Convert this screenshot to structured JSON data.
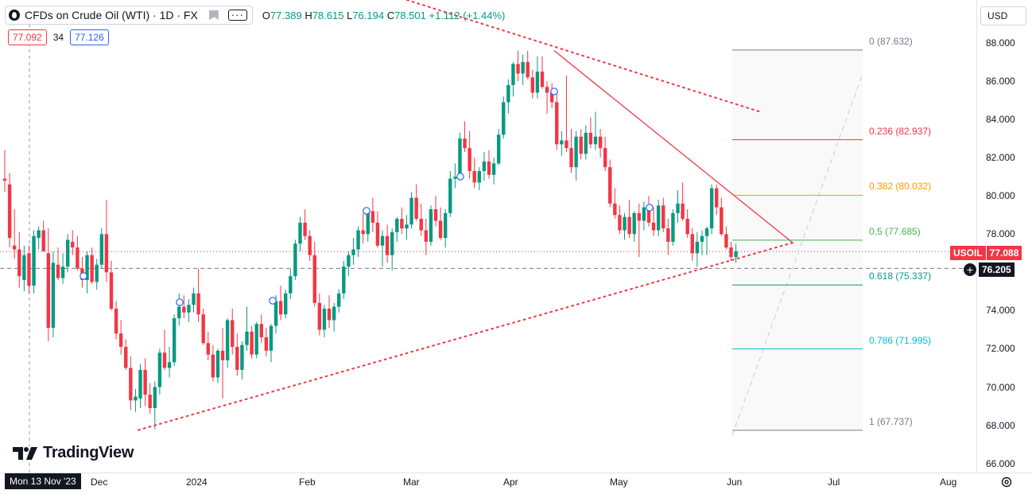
{
  "header": {
    "symbol_title": "CFDs on Crude Oil (WTI) · 1D · FX",
    "ohlc": {
      "o_label": "O",
      "o_value": "77.389",
      "h_label": "H",
      "h_value": "78.615",
      "l_label": "L",
      "l_value": "76.194",
      "c_label": "C",
      "c_value": "78.501",
      "change": "+1.112 (+1.44%)"
    },
    "bid": "77.092",
    "spread": "34",
    "ask": "77.126"
  },
  "currency_button": "USD",
  "price_axis": [
    "88.000",
    "86.000",
    "84.000",
    "82.000",
    "80.000",
    "78.000",
    "76.000",
    "74.000",
    "72.000",
    "70.000",
    "68.000",
    "66.000"
  ],
  "time_axis": [
    "Dec",
    "2024",
    "Feb",
    "Mar",
    "Apr",
    "May",
    "Jun",
    "Jul",
    "Aug"
  ],
  "crosshair_date": "Mon 13 Nov '23",
  "last_price": {
    "symbol": "USOIL",
    "value": "77.088",
    "color": "#f23645"
  },
  "cursor_price": "76.205",
  "fib_levels": [
    {
      "label": "0 (87.632)",
      "level": 87.632,
      "color": "#787b86"
    },
    {
      "label": "0.236 (82.937)",
      "level": 82.937,
      "color": "#f23645"
    },
    {
      "label": "0.382 (80.032)",
      "level": 80.032,
      "color": "#ff9800"
    },
    {
      "label": "0.5 (77.685)",
      "level": 77.685,
      "color": "#4caf50"
    },
    {
      "label": "0.618 (75.337)",
      "level": 75.337,
      "color": "#089981"
    },
    {
      "label": "0.786 (71.995)",
      "level": 71.995,
      "color": "#00bcd4"
    },
    {
      "label": "1 (67.737)",
      "level": 67.737,
      "color": "#787b86"
    }
  ],
  "colors": {
    "up": "#089981",
    "down": "#f23645",
    "background": "#ffffff",
    "accent": "#2962ff"
  },
  "brand": "TradingView",
  "icons": [
    "oil-drop-icon",
    "flag-icon",
    "more-icon",
    "settings-icon",
    "plus-circle-icon"
  ],
  "chart_data": {
    "type": "candlestick",
    "price_range": [
      65.5,
      89.5
    ],
    "candles": [
      [
        80.9,
        82.4,
        80.2,
        80.8
      ],
      [
        80.6,
        81.2,
        77.3,
        77.8
      ],
      [
        77.4,
        79.3,
        76.7,
        77.2
      ],
      [
        77.2,
        78.1,
        75.2,
        75.8
      ],
      [
        75.6,
        77.4,
        75.0,
        76.9
      ],
      [
        77.0,
        77.4,
        74.9,
        75.3
      ],
      [
        75.3,
        78.2,
        74.9,
        77.9
      ],
      [
        77.8,
        78.4,
        77.2,
        78.2
      ],
      [
        78.2,
        78.7,
        77.1,
        77.1
      ],
      [
        77.0,
        78.3,
        72.4,
        73.1
      ],
      [
        73.1,
        77.1,
        72.6,
        76.5
      ],
      [
        76.4,
        77.3,
        75.6,
        75.7
      ],
      [
        75.7,
        77.0,
        75.4,
        76.3
      ],
      [
        76.3,
        78.0,
        76.0,
        77.7
      ],
      [
        77.6,
        78.2,
        76.9,
        77.3
      ],
      [
        77.3,
        77.9,
        76.1,
        76.2
      ],
      [
        76.2,
        76.8,
        75.2,
        75.6
      ],
      [
        75.6,
        77.1,
        74.9,
        76.9
      ],
      [
        76.9,
        77.3,
        75.4,
        75.5
      ],
      [
        75.5,
        76.7,
        75.1,
        76.4
      ],
      [
        76.4,
        78.3,
        76.2,
        78.0
      ],
      [
        78.0,
        79.8,
        75.5,
        76.0
      ],
      [
        76.0,
        76.6,
        74.0,
        74.1
      ],
      [
        74.1,
        74.5,
        72.5,
        72.8
      ],
      [
        72.8,
        73.5,
        71.7,
        72.1
      ],
      [
        72.1,
        72.5,
        70.9,
        71.0
      ],
      [
        71.0,
        71.6,
        68.8,
        69.3
      ],
      [
        69.3,
        69.9,
        68.7,
        69.5
      ],
      [
        69.4,
        71.2,
        68.9,
        70.9
      ],
      [
        70.9,
        71.5,
        69.0,
        69.6
      ],
      [
        69.6,
        70.2,
        68.6,
        68.9
      ],
      [
        68.9,
        70.3,
        67.8,
        70.0
      ],
      [
        70.0,
        72.0,
        69.6,
        71.8
      ],
      [
        71.8,
        73.0,
        70.9,
        71.0
      ],
      [
        71.0,
        72.1,
        70.5,
        71.3
      ],
      [
        71.3,
        73.8,
        71.1,
        73.6
      ],
      [
        73.6,
        74.9,
        73.2,
        74.2
      ],
      [
        74.2,
        74.8,
        73.6,
        73.9
      ],
      [
        73.9,
        74.6,
        73.4,
        74.3
      ],
      [
        74.3,
        75.2,
        73.9,
        74.9
      ],
      [
        74.9,
        76.2,
        73.4,
        73.8
      ],
      [
        73.8,
        74.1,
        72.2,
        72.3
      ],
      [
        72.3,
        72.9,
        71.4,
        71.7
      ],
      [
        71.7,
        72.2,
        70.3,
        70.5
      ],
      [
        70.5,
        72.0,
        70.2,
        71.9
      ],
      [
        71.9,
        73.1,
        69.4,
        71.4
      ],
      [
        71.4,
        73.6,
        71.0,
        73.5
      ],
      [
        73.5,
        74.1,
        71.7,
        72.1
      ],
      [
        72.1,
        72.8,
        70.6,
        70.9
      ],
      [
        70.9,
        72.4,
        70.4,
        72.2
      ],
      [
        72.2,
        74.2,
        71.9,
        72.9
      ],
      [
        72.9,
        73.2,
        71.5,
        71.7
      ],
      [
        71.7,
        73.4,
        71.5,
        73.3
      ],
      [
        73.3,
        73.8,
        72.3,
        72.6
      ],
      [
        72.6,
        73.1,
        71.6,
        71.9
      ],
      [
        71.9,
        73.3,
        71.3,
        73.2
      ],
      [
        73.2,
        74.8,
        72.8,
        74.5
      ],
      [
        74.5,
        75.3,
        73.5,
        73.8
      ],
      [
        73.8,
        75.1,
        73.6,
        74.9
      ],
      [
        74.9,
        76.2,
        74.6,
        75.8
      ],
      [
        75.8,
        77.7,
        75.6,
        77.5
      ],
      [
        77.5,
        78.9,
        77.1,
        78.6
      ],
      [
        78.6,
        79.3,
        77.7,
        77.9
      ],
      [
        77.9,
        78.2,
        76.6,
        76.9
      ],
      [
        76.9,
        77.6,
        74.2,
        74.4
      ],
      [
        74.4,
        74.9,
        72.7,
        73.0
      ],
      [
        73.0,
        74.3,
        72.6,
        74.1
      ],
      [
        74.1,
        74.8,
        73.1,
        73.5
      ],
      [
        73.5,
        74.4,
        72.9,
        74.2
      ],
      [
        74.2,
        75.1,
        73.9,
        74.9
      ],
      [
        74.9,
        76.6,
        74.6,
        76.3
      ],
      [
        76.3,
        77.1,
        75.8,
        76.9
      ],
      [
        76.9,
        77.8,
        76.4,
        77.2
      ],
      [
        77.2,
        78.4,
        76.8,
        78.2
      ],
      [
        78.2,
        79.1,
        77.5,
        78.0
      ],
      [
        78.0,
        79.4,
        77.6,
        79.2
      ],
      [
        79.2,
        79.9,
        78.1,
        78.6
      ],
      [
        78.6,
        79.2,
        77.3,
        77.4
      ],
      [
        77.4,
        78.2,
        76.3,
        77.9
      ],
      [
        77.9,
        78.5,
        76.5,
        76.9
      ],
      [
        76.9,
        78.3,
        76.1,
        78.1
      ],
      [
        78.1,
        78.9,
        77.6,
        78.8
      ],
      [
        78.8,
        79.4,
        78.0,
        78.3
      ],
      [
        78.3,
        79.0,
        77.7,
        78.5
      ],
      [
        78.5,
        80.2,
        78.3,
        79.9
      ],
      [
        79.9,
        80.6,
        78.7,
        78.8
      ],
      [
        78.8,
        79.6,
        77.9,
        78.2
      ],
      [
        78.2,
        78.8,
        76.9,
        77.6
      ],
      [
        77.6,
        79.5,
        77.4,
        79.3
      ],
      [
        79.3,
        80.0,
        78.4,
        78.7
      ],
      [
        78.7,
        79.4,
        77.7,
        77.8
      ],
      [
        77.8,
        79.3,
        77.3,
        79.1
      ],
      [
        79.1,
        81.3,
        78.9,
        80.9
      ],
      [
        80.9,
        81.7,
        80.4,
        81.0
      ],
      [
        81.0,
        83.3,
        80.8,
        83.0
      ],
      [
        83.0,
        83.9,
        82.3,
        82.5
      ],
      [
        82.5,
        83.4,
        80.9,
        81.3
      ],
      [
        81.3,
        82.0,
        80.4,
        80.7
      ],
      [
        80.7,
        81.5,
        80.3,
        81.3
      ],
      [
        81.3,
        82.3,
        80.8,
        81.8
      ],
      [
        81.8,
        82.4,
        80.9,
        81.1
      ],
      [
        81.1,
        82.0,
        80.6,
        81.7
      ],
      [
        81.7,
        83.5,
        81.6,
        83.2
      ],
      [
        83.2,
        85.2,
        83.0,
        84.9
      ],
      [
        84.9,
        86.1,
        84.3,
        85.8
      ],
      [
        85.8,
        87.0,
        85.2,
        86.9
      ],
      [
        86.9,
        87.6,
        86.0,
        86.4
      ],
      [
        86.4,
        87.4,
        85.8,
        87.0
      ],
      [
        87.0,
        87.6,
        86.1,
        86.2
      ],
      [
        86.2,
        86.6,
        85.1,
        85.4
      ],
      [
        85.4,
        87.3,
        85.1,
        86.5
      ],
      [
        86.5,
        87.3,
        85.6,
        85.7
      ],
      [
        85.7,
        86.0,
        84.3,
        85.4
      ],
      [
        85.4,
        85.9,
        84.6,
        84.9
      ],
      [
        84.9,
        85.5,
        82.4,
        82.7
      ],
      [
        82.7,
        83.4,
        82.1,
        82.9
      ],
      [
        82.9,
        86.3,
        82.3,
        82.5
      ],
      [
        82.5,
        83.5,
        81.2,
        81.5
      ],
      [
        81.5,
        83.4,
        80.8,
        83.1
      ],
      [
        83.1,
        83.5,
        81.9,
        82.2
      ],
      [
        82.2,
        83.7,
        81.9,
        83.3
      ],
      [
        83.3,
        84.1,
        82.5,
        82.7
      ],
      [
        82.7,
        84.4,
        82.4,
        83.1
      ],
      [
        83.1,
        83.5,
        82.0,
        82.5
      ],
      [
        82.5,
        83.1,
        81.3,
        81.5
      ],
      [
        81.5,
        81.9,
        79.4,
        79.6
      ],
      [
        79.6,
        80.4,
        78.8,
        79.0
      ],
      [
        79.0,
        79.5,
        78.0,
        78.2
      ],
      [
        78.2,
        79.1,
        77.7,
        78.9
      ],
      [
        78.9,
        79.8,
        77.8,
        78.0
      ],
      [
        78.0,
        79.2,
        77.6,
        79.1
      ],
      [
        79.1,
        79.6,
        76.8,
        78.7
      ],
      [
        78.7,
        79.7,
        78.2,
        79.4
      ],
      [
        79.4,
        80.0,
        78.4,
        78.6
      ],
      [
        78.6,
        79.4,
        77.9,
        78.2
      ],
      [
        78.2,
        79.8,
        77.9,
        79.5
      ],
      [
        79.5,
        79.9,
        78.1,
        78.3
      ],
      [
        78.3,
        78.8,
        76.9,
        77.6
      ],
      [
        77.6,
        79.3,
        77.4,
        79.1
      ],
      [
        79.1,
        80.3,
        78.6,
        79.6
      ],
      [
        79.6,
        80.7,
        78.7,
        78.8
      ],
      [
        78.8,
        79.3,
        77.8,
        78.0
      ],
      [
        78.0,
        78.3,
        76.6,
        77.0
      ],
      [
        77.0,
        78.1,
        76.3,
        77.6
      ],
      [
        77.6,
        78.2,
        76.9,
        77.9
      ],
      [
        77.9,
        78.4,
        76.9,
        78.3
      ],
      [
        78.3,
        80.6,
        78.0,
        80.4
      ],
      [
        80.4,
        80.6,
        79.0,
        79.4
      ],
      [
        79.4,
        79.9,
        77.9,
        78.0
      ],
      [
        78.0,
        78.4,
        77.2,
        77.3
      ],
      [
        77.3,
        77.6,
        76.6,
        76.8
      ],
      [
        76.8,
        77.5,
        76.5,
        77.1
      ]
    ],
    "fib_range": [
      67.737,
      87.632
    ]
  }
}
